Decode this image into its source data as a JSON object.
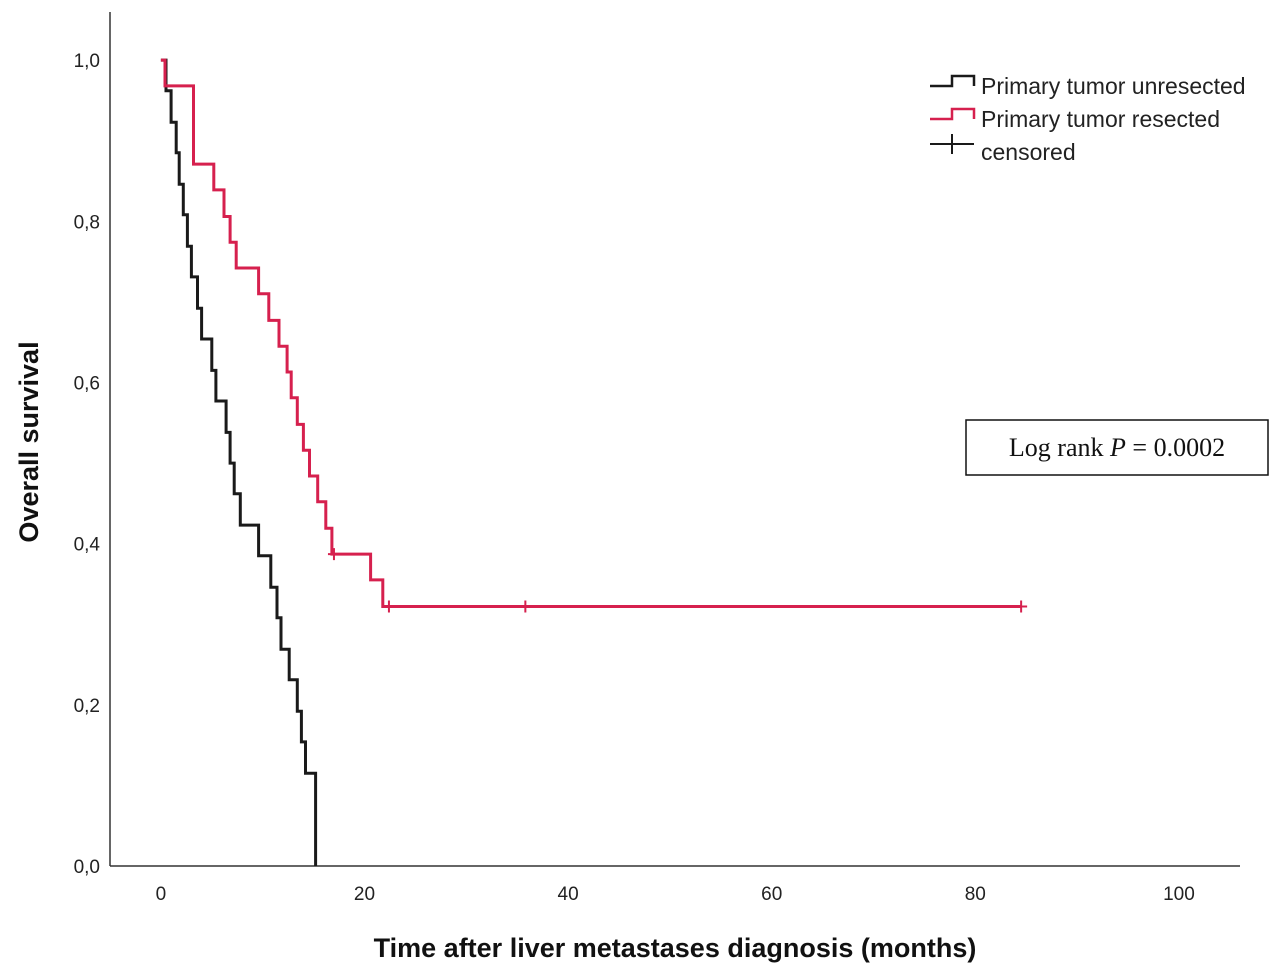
{
  "chart_data": {
    "type": "line",
    "subtype": "kaplan-meier-step",
    "title": "",
    "xlabel": "Time after liver metastases diagnosis (months)",
    "ylabel": "Overall survival",
    "xlim": [
      -5,
      106
    ],
    "ylim": [
      0,
      1.02
    ],
    "xticks": [
      0,
      20,
      40,
      60,
      80,
      100
    ],
    "xtick_labels": [
      "0",
      "20",
      "40",
      "60",
      "80",
      "100"
    ],
    "yticks": [
      0.0,
      0.2,
      0.4,
      0.6,
      0.8,
      1.0
    ],
    "ytick_labels": [
      "0,0",
      "0,2",
      "0,4",
      "0,6",
      "0,8",
      "1,0"
    ],
    "grid": false,
    "legend_position": "top-right",
    "legend": [
      {
        "label": "Primary tumor unresected",
        "symbol": "step",
        "color": "#1a1a1a"
      },
      {
        "label": "Primary tumor resected",
        "symbol": "step",
        "color": "#d6204e"
      },
      {
        "label": "censored",
        "symbol": "plus",
        "color": "#1a1a1a"
      }
    ],
    "annotation": {
      "prefix": "Log rank ",
      "italic": "P",
      "suffix": " = 0.0002"
    },
    "series": [
      {
        "name": "Primary tumor unresected",
        "color": "#1a1a1a",
        "x": [
          0,
          0.5,
          0.5,
          1.0,
          1.5,
          1.8,
          2.2,
          2.6,
          3.0,
          3.6,
          4.0,
          5.0,
          5.4,
          6.4,
          6.8,
          7.2,
          7.8,
          9.6,
          10.8,
          11.4,
          11.8,
          12.6,
          13.4,
          13.8,
          14.2,
          15.2,
          15.2
        ],
        "y": [
          1.0,
          1.0,
          0.962,
          0.923,
          0.885,
          0.846,
          0.808,
          0.769,
          0.731,
          0.692,
          0.654,
          0.615,
          0.577,
          0.538,
          0.5,
          0.462,
          0.423,
          0.385,
          0.346,
          0.308,
          0.269,
          0.231,
          0.192,
          0.154,
          0.115,
          0.077,
          0.0
        ],
        "censored": []
      },
      {
        "name": "Primary tumor resected",
        "color": "#d6204e",
        "x": [
          0,
          0.4,
          0.4,
          3.2,
          5.2,
          6.2,
          6.8,
          7.4,
          9.6,
          10.6,
          11.6,
          12.4,
          12.8,
          13.4,
          14.0,
          14.6,
          15.4,
          16.2,
          16.8,
          20.6,
          21.8,
          84.5
        ],
        "y": [
          1.0,
          1.0,
          0.968,
          0.871,
          0.839,
          0.806,
          0.774,
          0.742,
          0.71,
          0.677,
          0.645,
          0.613,
          0.581,
          0.548,
          0.516,
          0.484,
          0.452,
          0.419,
          0.387,
          0.355,
          0.322,
          0.322
        ],
        "censored": [
          [
            17.0,
            0.387
          ],
          [
            22.4,
            0.322
          ],
          [
            35.8,
            0.322
          ],
          [
            84.5,
            0.322
          ]
        ]
      }
    ]
  }
}
